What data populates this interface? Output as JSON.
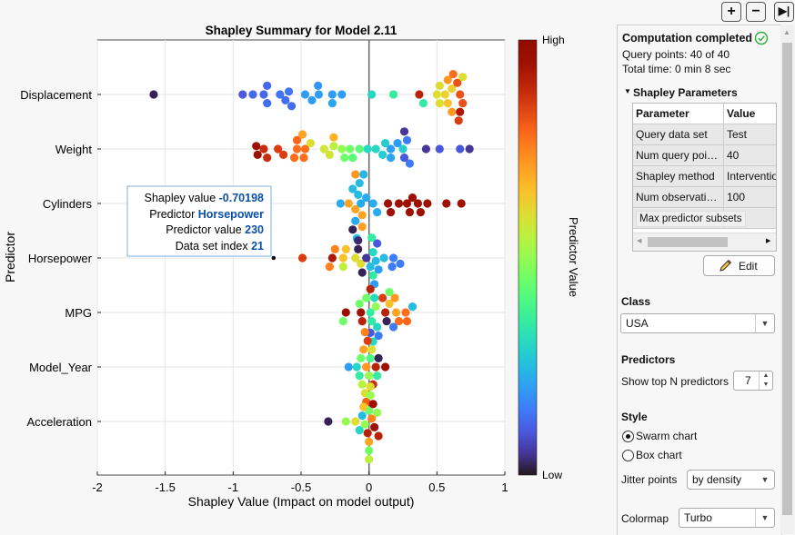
{
  "chart_data": {
    "type": "scatter",
    "subtype": "swarm",
    "title": "Shapley Summary for Model 2.11",
    "xlabel": "Shapley Value (Impact on model output)",
    "ylabel": "Predictor",
    "xlim": [
      -2,
      1
    ],
    "xticks": [
      "-2",
      "-1.5",
      "-1",
      "-0.5",
      "0",
      "0.5",
      "1"
    ],
    "xtick_values": [
      -2,
      -1.5,
      -1,
      -0.5,
      0,
      0.5,
      1
    ],
    "grid": true,
    "colorbar": {
      "label": "Predictor Value",
      "high": "High",
      "low": "Low",
      "colormap": "turbo"
    },
    "categories": [
      "Displacement",
      "Weight",
      "Cylinders",
      "Horsepower",
      "MPG",
      "Model_Year",
      "Acceleration"
    ],
    "series": [
      {
        "predictor": "Displacement",
        "points": [
          [
            -1.585,
            0.02
          ],
          [
            -0.93,
            0.1
          ],
          [
            -0.855,
            0.12
          ],
          [
            -0.775,
            0.12
          ],
          [
            -0.75,
            0.13
          ],
          [
            -0.75,
            0.12
          ],
          [
            -0.655,
            0.14
          ],
          [
            -0.615,
            0.13
          ],
          [
            -0.59,
            0.14
          ],
          [
            -0.57,
            0.13
          ],
          [
            -0.47,
            0.2
          ],
          [
            -0.42,
            0.2
          ],
          [
            -0.37,
            0.2
          ],
          [
            -0.375,
            0.19
          ],
          [
            -0.27,
            0.2
          ],
          [
            -0.27,
            0.21
          ],
          [
            -0.2,
            0.2
          ],
          [
            0.02,
            0.3
          ],
          [
            0.18,
            0.35
          ],
          [
            0.37,
            0.9
          ],
          [
            0.4,
            0.35
          ],
          [
            0.5,
            0.6
          ],
          [
            0.52,
            0.6
          ],
          [
            0.56,
            0.62
          ],
          [
            0.58,
            0.65
          ],
          [
            0.61,
            0.62
          ],
          [
            0.58,
            0.72
          ],
          [
            0.61,
            0.72
          ],
          [
            0.67,
            0.82
          ],
          [
            0.69,
            0.82
          ],
          [
            0.65,
            0.82
          ],
          [
            0.67,
            0.92
          ],
          [
            0.69,
            0.6
          ],
          [
            0.66,
            0.85
          ],
          [
            0.62,
            0.78
          ],
          [
            0.52,
            0.6
          ]
        ]
      },
      {
        "predictor": "Weight",
        "points": [
          [
            -0.775,
            0.88
          ],
          [
            -0.75,
            0.88
          ],
          [
            -0.82,
            0.95
          ],
          [
            -0.83,
            0.95
          ],
          [
            -0.67,
            0.85
          ],
          [
            -0.63,
            0.85
          ],
          [
            -0.53,
            0.78
          ],
          [
            -0.47,
            0.78
          ],
          [
            -0.55,
            0.78
          ],
          [
            -0.53,
            0.79
          ],
          [
            -0.48,
            0.78
          ],
          [
            -0.49,
            0.7
          ],
          [
            -0.43,
            0.6
          ],
          [
            -0.33,
            0.58
          ],
          [
            -0.29,
            0.58
          ],
          [
            -0.26,
            0.55
          ],
          [
            -0.26,
            0.68
          ],
          [
            -0.2,
            0.5
          ],
          [
            -0.18,
            0.45
          ],
          [
            -0.14,
            0.45
          ],
          [
            -0.12,
            0.42
          ],
          [
            -0.07,
            0.42
          ],
          [
            -0.01,
            0.3
          ],
          [
            0.05,
            0.3
          ],
          [
            0.16,
            0.2
          ],
          [
            0.1,
            0.28
          ],
          [
            0.12,
            0.28
          ],
          [
            0.16,
            0.21
          ],
          [
            0.21,
            0.2
          ],
          [
            0.25,
            0.28
          ],
          [
            0.26,
            0.1
          ],
          [
            0.28,
            0.15
          ],
          [
            0.3,
            0.15
          ],
          [
            0.26,
            0.05
          ],
          [
            0.42,
            0.05
          ],
          [
            0.52,
            0.1
          ],
          [
            0.67,
            0.1
          ],
          [
            0.74,
            0.05
          ]
        ]
      },
      {
        "predictor": "Cylinders",
        "points": [
          [
            -0.21,
            0.22
          ],
          [
            -0.15,
            0.7
          ],
          [
            -0.1,
            0.7
          ],
          [
            -0.06,
            0.22
          ],
          [
            -0.08,
            0.25
          ],
          [
            -0.05,
            0.7
          ],
          [
            -0.02,
            0.22
          ],
          [
            0.03,
            0.22
          ],
          [
            0.06,
            0.22
          ],
          [
            -0.1,
            0.22
          ],
          [
            -0.12,
            0.25
          ],
          [
            -0.07,
            0.25
          ],
          [
            -0.05,
            0.71
          ],
          [
            -0.12,
            0.02
          ],
          [
            -0.1,
            0.72
          ],
          [
            -0.09,
            0.25
          ],
          [
            -0.04,
            0.24
          ],
          [
            0.14,
            0.95
          ],
          [
            0.16,
            0.95
          ],
          [
            0.22,
            0.95
          ],
          [
            0.28,
            0.95
          ],
          [
            0.3,
            0.95
          ],
          [
            0.32,
            0.95
          ],
          [
            0.36,
            0.95
          ],
          [
            0.38,
            0.95
          ],
          [
            0.43,
            0.95
          ],
          [
            0.57,
            0.95
          ],
          [
            0.68,
            0.95
          ]
        ]
      },
      {
        "predictor": "Horsepower",
        "points": [
          [
            -0.70198,
            0.98
          ],
          [
            -0.49,
            0.85
          ],
          [
            -0.27,
            0.92
          ],
          [
            -0.29,
            0.75
          ],
          [
            -0.25,
            0.75
          ],
          [
            -0.19,
            0.65
          ],
          [
            -0.19,
            0.55
          ],
          [
            -0.17,
            0.65
          ],
          [
            -0.1,
            0.6
          ],
          [
            -0.06,
            0.6
          ],
          [
            -0.08,
            0.02
          ],
          [
            -0.05,
            0.02
          ],
          [
            -0.02,
            0.05
          ],
          [
            0.01,
            0.25
          ],
          [
            0.03,
            0.3
          ],
          [
            0.05,
            0.25
          ],
          [
            0.07,
            0.2
          ],
          [
            0.11,
            0.25
          ],
          [
            0.18,
            0.15
          ],
          [
            0.23,
            0.15
          ],
          [
            0.17,
            0.15
          ],
          [
            0.06,
            0.1
          ],
          [
            0.03,
            0.35
          ],
          [
            0.02,
            0.35
          ],
          [
            -0.08,
            0.03
          ],
          [
            0.04,
            0.2
          ]
        ]
      },
      {
        "predictor": "MPG",
        "points": [
          [
            -0.17,
            0.95
          ],
          [
            -0.19,
            0.45
          ],
          [
            -0.06,
            0.95
          ],
          [
            -0.05,
            0.9
          ],
          [
            -0.07,
            0.45
          ],
          [
            -0.02,
            0.45
          ],
          [
            0.01,
            0.35
          ],
          [
            0.02,
            0.35
          ],
          [
            0.05,
            0.5
          ],
          [
            0.06,
            0.3
          ],
          [
            0.12,
            0.9
          ],
          [
            0.13,
            0.02
          ],
          [
            0.15,
            0.65
          ],
          [
            0.2,
            0.7
          ],
          [
            0.22,
            0.78
          ],
          [
            0.27,
            0.78
          ],
          [
            0.28,
            0.79
          ],
          [
            0.32,
            0.25
          ],
          [
            0.18,
            0.15
          ],
          [
            0.19,
            0.72
          ],
          [
            0.1,
            0.85
          ],
          [
            0.07,
            0.15
          ],
          [
            0.01,
            0.1
          ],
          [
            0.01,
            0.9
          ],
          [
            0.15,
            0.45
          ],
          [
            0.03,
            0.3
          ],
          [
            0.04,
            0.31
          ]
        ]
      },
      {
        "predictor": "Model_Year",
        "points": [
          [
            -0.15,
            0.2
          ],
          [
            -0.09,
            0.3
          ],
          [
            -0.07,
            0.35
          ],
          [
            -0.06,
            0.45
          ],
          [
            -0.05,
            0.55
          ],
          [
            -0.04,
            0.7
          ],
          [
            -0.02,
            0.72
          ],
          [
            -0.03,
            0.6
          ],
          [
            0.0,
            0.5
          ],
          [
            0.01,
            0.4
          ],
          [
            0.03,
            0.88
          ],
          [
            0.05,
            0.9
          ],
          [
            0.06,
            0.35
          ],
          [
            0.07,
            0.02
          ],
          [
            0.12,
            0.95
          ],
          [
            -0.01,
            0.85
          ],
          [
            -0.02,
            0.8
          ],
          [
            -0.03,
            0.75
          ],
          [
            0.02,
            0.6
          ],
          [
            0.0,
            0.45
          ]
        ]
      },
      {
        "predictor": "Acceleration",
        "points": [
          [
            -0.3,
            0.02
          ],
          [
            -0.17,
            0.5
          ],
          [
            -0.1,
            0.6
          ],
          [
            -0.07,
            0.3
          ],
          [
            -0.05,
            0.25
          ],
          [
            -0.04,
            0.65
          ],
          [
            -0.03,
            0.5
          ],
          [
            -0.01,
            0.9
          ],
          [
            0.0,
            0.7
          ],
          [
            0.02,
            0.75
          ],
          [
            0.04,
            0.95
          ],
          [
            0.06,
            0.5
          ],
          [
            0.07,
            0.9
          ],
          [
            0.03,
            0.95
          ],
          [
            0.01,
            0.5
          ],
          [
            0.0,
            0.45
          ],
          [
            0.01,
            0.6
          ],
          [
            0.0,
            0.55
          ]
        ]
      }
    ],
    "selected": {
      "predictor": "Horsepower",
      "index": 0
    }
  },
  "tooltip": {
    "l1": "Shapley value",
    "v1": "-0.70198",
    "l2": "Predictor",
    "v2": "Horsepower",
    "l3": "Predictor value",
    "v3": "230",
    "l4": "Data set index",
    "v4": "21"
  },
  "toolbar": {
    "zoom_in": "+",
    "zoom_out": "−",
    "collapse": "▶|"
  },
  "status": {
    "title": "Computation completed",
    "query_points": "Query points: 40 of 40",
    "total_time": "Total time: 0 min 8  sec"
  },
  "params": {
    "title": "Shapley Parameters",
    "col1": "Parameter",
    "col2": "Value",
    "rows": [
      {
        "p": "Query data set",
        "v": "Test"
      },
      {
        "p": "Num query poi…",
        "v": "40"
      },
      {
        "p": "Shapley method",
        "v": "Interventio"
      },
      {
        "p": "Num observati…",
        "v": "100"
      }
    ],
    "tooltip": "Max predictor subsets",
    "edit": "Edit"
  },
  "class": {
    "label": "Class",
    "value": "USA"
  },
  "predictors": {
    "label": "Predictors",
    "topn_label": "Show top N predictors",
    "topn": "7"
  },
  "style": {
    "label": "Style",
    "opt1": "Swarm chart",
    "opt2": "Box chart",
    "selected": "Swarm chart",
    "jitter_label": "Jitter points",
    "jitter": "by density",
    "colormap_label": "Colormap",
    "colormap": "Turbo"
  },
  "colors": {
    "success": "#2eae3a",
    "tooltip_value": "#0b4fa8",
    "tooltip_border": "#7fb0de"
  }
}
